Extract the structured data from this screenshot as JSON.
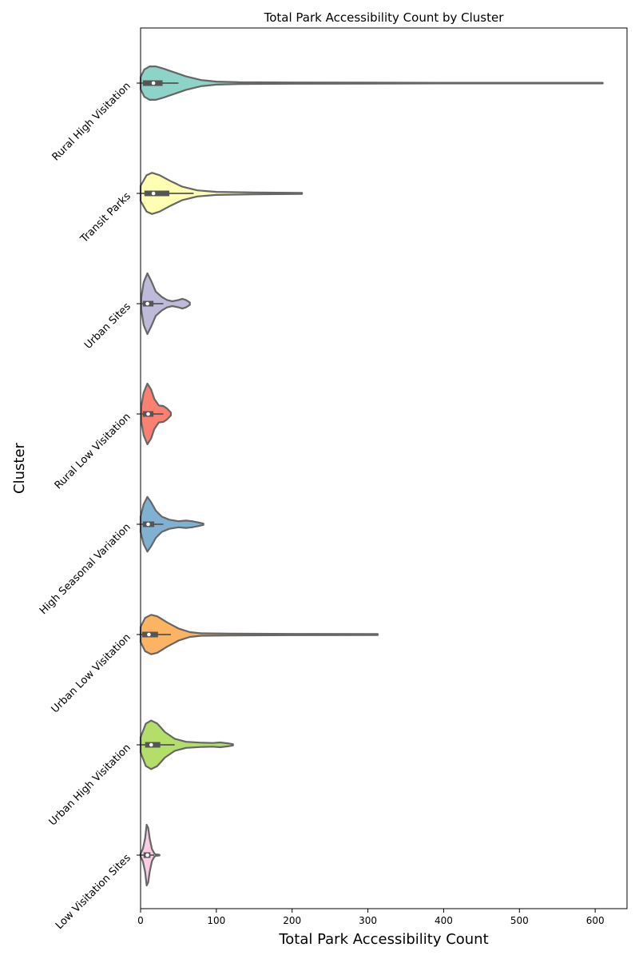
{
  "chart_data": {
    "type": "violin",
    "title": "Total Park Accessibility Count by Cluster",
    "xlabel": "Total Park Accessibility Count",
    "ylabel": "Cluster",
    "xlim": [
      0,
      642
    ],
    "xticks": [
      0,
      100,
      200,
      300,
      400,
      500,
      600
    ],
    "orientation": "horizontal",
    "grid": false,
    "categories": [
      {
        "name": "Rural High Visitation",
        "color": "#8dd3c7",
        "min": 0,
        "q1": 3,
        "median": 17,
        "q3": 29,
        "whisker_high": 50,
        "max": 610,
        "density": [
          [
            0,
            0.2
          ],
          [
            5,
            0.45
          ],
          [
            12,
            0.55
          ],
          [
            20,
            0.55
          ],
          [
            30,
            0.48
          ],
          [
            45,
            0.35
          ],
          [
            60,
            0.22
          ],
          [
            80,
            0.1
          ],
          [
            100,
            0.05
          ],
          [
            130,
            0.03
          ],
          [
            200,
            0.02
          ],
          [
            300,
            0.015
          ],
          [
            400,
            0.01
          ],
          [
            500,
            0.01
          ],
          [
            610,
            0.01
          ]
        ]
      },
      {
        "name": "Transit Parks",
        "color": "#ffffb3",
        "min": 0,
        "q1": 5,
        "median": 17,
        "q3": 38,
        "whisker_high": 70,
        "max": 213,
        "density": [
          [
            0,
            0.25
          ],
          [
            8,
            0.6
          ],
          [
            15,
            0.68
          ],
          [
            25,
            0.6
          ],
          [
            40,
            0.4
          ],
          [
            55,
            0.22
          ],
          [
            75,
            0.1
          ],
          [
            100,
            0.05
          ],
          [
            150,
            0.03
          ],
          [
            213,
            0.015
          ]
        ]
      },
      {
        "name": "Urban Sites",
        "color": "#bebada",
        "min": 1,
        "q1": 3,
        "median": 9,
        "q3": 17,
        "whisker_high": 30,
        "max": 65,
        "density": [
          [
            1,
            0.2
          ],
          [
            4,
            0.7
          ],
          [
            9,
            1.0
          ],
          [
            14,
            0.75
          ],
          [
            20,
            0.4
          ],
          [
            28,
            0.22
          ],
          [
            35,
            0.12
          ],
          [
            42,
            0.08
          ],
          [
            50,
            0.12
          ],
          [
            55,
            0.16
          ],
          [
            60,
            0.12
          ],
          [
            65,
            0.04
          ]
        ]
      },
      {
        "name": "Rural Low Visitation",
        "color": "#fb8072",
        "min": 1,
        "q1": 3,
        "median": 10,
        "q3": 17,
        "whisker_high": 30,
        "max": 40,
        "density": [
          [
            1,
            0.25
          ],
          [
            4,
            0.7
          ],
          [
            9,
            1.0
          ],
          [
            14,
            0.8
          ],
          [
            18,
            0.5
          ],
          [
            24,
            0.28
          ],
          [
            30,
            0.26
          ],
          [
            35,
            0.18
          ],
          [
            40,
            0.05
          ]
        ]
      },
      {
        "name": "High Seasonal Variation",
        "color": "#80b1d3",
        "min": 0,
        "q1": 3,
        "median": 10,
        "q3": 18,
        "whisker_high": 30,
        "max": 83,
        "density": [
          [
            0,
            0.25
          ],
          [
            4,
            0.65
          ],
          [
            9,
            0.9
          ],
          [
            14,
            0.72
          ],
          [
            20,
            0.45
          ],
          [
            28,
            0.25
          ],
          [
            38,
            0.15
          ],
          [
            50,
            0.1
          ],
          [
            60,
            0.12
          ],
          [
            68,
            0.1
          ],
          [
            76,
            0.06
          ],
          [
            83,
            0.02
          ]
        ]
      },
      {
        "name": "Urban Low Visitation",
        "color": "#fdb462",
        "min": 0,
        "q1": 2,
        "median": 11,
        "q3": 23,
        "whisker_high": 40,
        "max": 313,
        "density": [
          [
            0,
            0.25
          ],
          [
            6,
            0.55
          ],
          [
            14,
            0.65
          ],
          [
            22,
            0.6
          ],
          [
            35,
            0.4
          ],
          [
            50,
            0.2
          ],
          [
            65,
            0.08
          ],
          [
            80,
            0.04
          ],
          [
            120,
            0.03
          ],
          [
            200,
            0.02
          ],
          [
            313,
            0.015
          ]
        ]
      },
      {
        "name": "Urban High Visitation",
        "color": "#b3de69",
        "min": 0,
        "q1": 6,
        "median": 14,
        "q3": 26,
        "whisker_high": 45,
        "max": 122,
        "density": [
          [
            0,
            0.25
          ],
          [
            7,
            0.7
          ],
          [
            14,
            0.8
          ],
          [
            22,
            0.7
          ],
          [
            32,
            0.42
          ],
          [
            45,
            0.2
          ],
          [
            60,
            0.1
          ],
          [
            80,
            0.07
          ],
          [
            95,
            0.06
          ],
          [
            105,
            0.08
          ],
          [
            115,
            0.05
          ],
          [
            122,
            0.02
          ]
        ]
      },
      {
        "name": "Low Visitation Sites",
        "color": "#fccde5",
        "min": 0,
        "q1": 4,
        "median": 9,
        "q3": 13,
        "whisker_high": 18,
        "max": 25,
        "density": [
          [
            0,
            0.05
          ],
          [
            3,
            0.2
          ],
          [
            6,
            0.55
          ],
          [
            8,
            1.0
          ],
          [
            10,
            0.9
          ],
          [
            12,
            0.55
          ],
          [
            15,
            0.2
          ],
          [
            18,
            0.06
          ],
          [
            20,
            0.02
          ],
          [
            22,
            0.02
          ],
          [
            25,
            0.01
          ]
        ]
      }
    ]
  }
}
